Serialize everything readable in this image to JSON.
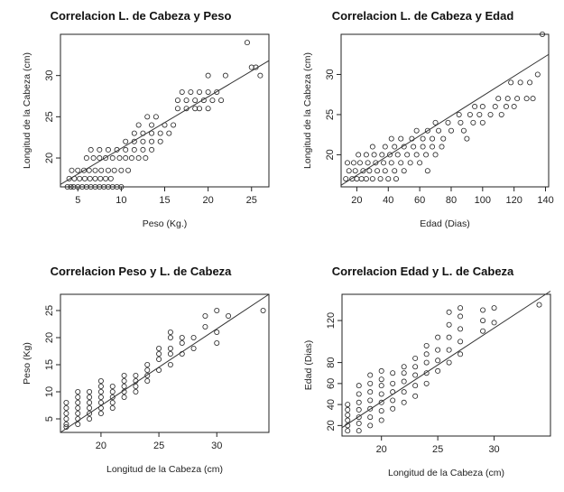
{
  "chart_data": [
    {
      "type": "scatter",
      "title": "Correlacion L. de Cabeza y Peso",
      "xlabel": "Peso (Kg.)",
      "ylabel": "Longitud de la Cabeza (cm)",
      "xlim": [
        3,
        27
      ],
      "ylim": [
        16.5,
        35
      ],
      "xticks": [
        5,
        10,
        15,
        20,
        25
      ],
      "yticks": [
        20,
        25,
        30
      ],
      "grid": false,
      "trendline": {
        "x": [
          3,
          27
        ],
        "y": [
          16.8,
          31.8
        ]
      },
      "x": [
        3.8,
        4.2,
        4.5,
        5.0,
        5.5,
        6.0,
        6.5,
        7.0,
        7.5,
        8.0,
        8.5,
        9.0,
        9.5,
        10.0,
        4.0,
        4.6,
        5.2,
        5.8,
        6.4,
        7.0,
        7.6,
        8.2,
        8.8,
        4.3,
        5.0,
        5.7,
        6.3,
        7.0,
        7.7,
        8.5,
        9.2,
        10.0,
        10.8,
        6.0,
        6.8,
        7.5,
        8.2,
        9.0,
        9.8,
        10.5,
        11.2,
        12.0,
        12.8,
        6.5,
        7.5,
        8.5,
        9.5,
        10.5,
        11.5,
        12.5,
        13.5,
        10.5,
        11.5,
        12.5,
        13.5,
        14.5,
        11.5,
        12.5,
        13.5,
        14.5,
        15.5,
        12.0,
        13.5,
        15.0,
        16.0,
        13.0,
        14.0,
        16.5,
        17.5,
        18.5,
        19.0,
        20.0,
        16.5,
        17.5,
        18.5,
        19.5,
        20.5,
        17.0,
        18.0,
        19.0,
        20.0,
        21.0,
        21.5,
        20.0,
        22.0,
        25.0,
        24.5,
        25.5,
        26.0
      ],
      "y": [
        16.5,
        16.5,
        16.5,
        16.5,
        16.5,
        16.5,
        16.5,
        16.5,
        16.5,
        16.5,
        16.5,
        16.5,
        16.5,
        16.5,
        17.5,
        17.5,
        17.5,
        17.5,
        17.5,
        17.5,
        17.5,
        17.5,
        17.5,
        18.5,
        18.5,
        18.5,
        18.5,
        18.5,
        18.5,
        18.5,
        18.5,
        18.5,
        18.5,
        20,
        20,
        20,
        20,
        20,
        20,
        20,
        20,
        20,
        20,
        21,
        21,
        21,
        21,
        21,
        21,
        21,
        21,
        22,
        22,
        22,
        22,
        22,
        23,
        23,
        23,
        23,
        23,
        24,
        24,
        24,
        24,
        25,
        25,
        26,
        26,
        26,
        26,
        26,
        27,
        27,
        27,
        27,
        27,
        28,
        28,
        28,
        28,
        28,
        27,
        30,
        30,
        31,
        34,
        31,
        30
      ]
    },
    {
      "type": "scatter",
      "title": "Correlacion L. de Cabeza y Edad",
      "xlabel": "Edad (Dias)",
      "ylabel": "Longitud de la Cabeza (cm)",
      "xlim": [
        10,
        142
      ],
      "ylim": [
        16,
        35
      ],
      "xticks": [
        20,
        40,
        60,
        80,
        100,
        120,
        140
      ],
      "yticks": [
        20,
        25,
        30
      ],
      "grid": false,
      "trendline": {
        "x": [
          10,
          142
        ],
        "y": [
          16.2,
          32.5
        ]
      },
      "x": [
        13,
        17,
        20,
        23,
        26,
        30,
        35,
        40,
        45,
        15,
        19,
        24,
        28,
        33,
        38,
        44,
        50,
        14,
        18,
        22,
        27,
        32,
        37,
        42,
        48,
        54,
        60,
        21,
        26,
        31,
        36,
        41,
        46,
        52,
        58,
        64,
        70,
        38,
        44,
        50,
        56,
        62,
        68,
        74,
        42,
        48,
        55,
        62,
        68,
        75,
        58,
        65,
        72,
        80,
        88,
        70,
        78,
        86,
        94,
        100,
        85,
        92,
        98,
        105,
        112,
        95,
        100,
        108,
        115,
        120,
        110,
        116,
        122,
        128,
        132,
        118,
        124,
        130,
        135,
        30,
        65,
        90,
        138
      ],
      "y": [
        17,
        17,
        17,
        17,
        17,
        17,
        17,
        17,
        17,
        18,
        18,
        18,
        18,
        18,
        18,
        18,
        18,
        19,
        19,
        19,
        19,
        19,
        19,
        19,
        19,
        19,
        19,
        20,
        20,
        20,
        20,
        20,
        20,
        20,
        20,
        20,
        20,
        21,
        21,
        21,
        21,
        21,
        21,
        21,
        22,
        22,
        22,
        22,
        22,
        22,
        23,
        23,
        23,
        23,
        23,
        24,
        24,
        24,
        24,
        24,
        25,
        25,
        25,
        25,
        25,
        26,
        26,
        26,
        26,
        26,
        27,
        27,
        27,
        27,
        27,
        29,
        29,
        29,
        30,
        21,
        18,
        22,
        35
      ]
    },
    {
      "type": "scatter",
      "title": "Correlacion Peso y  L. de Cabeza",
      "xlabel": "Longitud de la Cabeza (cm)",
      "ylabel": "Peso (Kg)",
      "xlim": [
        16.5,
        34.5
      ],
      "ylim": [
        2.5,
        28
      ],
      "xticks": [
        20,
        25,
        30
      ],
      "yticks": [
        5,
        10,
        15,
        20,
        25
      ],
      "grid": false,
      "trendline": {
        "x": [
          16.5,
          34.5
        ],
        "y": [
          2.5,
          28
        ]
      },
      "x": [
        17,
        17,
        17,
        17,
        17,
        17,
        18,
        18,
        18,
        18,
        18,
        18,
        18,
        19,
        19,
        19,
        19,
        19,
        19,
        20,
        20,
        20,
        20,
        20,
        20,
        20,
        21,
        21,
        21,
        21,
        21,
        22,
        22,
        22,
        22,
        22,
        23,
        23,
        23,
        23,
        24,
        24,
        24,
        24,
        25,
        25,
        25,
        25,
        26,
        26,
        26,
        26,
        26,
        27,
        27,
        27,
        28,
        28,
        29,
        29,
        30,
        30,
        30,
        31,
        34
      ],
      "y": [
        4,
        5,
        6,
        7,
        8,
        3.5,
        4,
        5,
        6,
        7,
        8,
        9,
        10,
        5,
        6,
        7,
        8,
        9,
        10,
        6,
        7,
        8,
        9,
        10,
        11,
        12,
        7,
        8,
        9,
        10,
        11,
        9,
        10,
        11,
        12,
        13,
        10,
        11,
        12,
        13,
        12,
        13,
        14,
        15,
        14,
        16,
        17,
        18,
        15,
        17,
        18,
        20,
        21,
        17,
        19,
        20,
        18,
        20,
        22,
        24,
        19,
        21,
        25,
        24,
        25
      ]
    },
    {
      "type": "scatter",
      "title": "Correlacion Edad y  L. de Cabeza",
      "xlabel": "Longitud de la Cabeza (cm)",
      "ylabel": "Edad (Dias)",
      "xlim": [
        16.5,
        35
      ],
      "ylim": [
        10,
        145
      ],
      "xticks": [
        20,
        25,
        30
      ],
      "yticks": [
        20,
        40,
        60,
        80,
        120
      ],
      "grid": false,
      "trendline": {
        "x": [
          16.5,
          35
        ],
        "y": [
          18,
          148
        ]
      },
      "x": [
        17,
        17,
        17,
        17,
        17,
        17,
        18,
        18,
        18,
        18,
        18,
        18,
        18,
        19,
        19,
        19,
        19,
        19,
        19,
        19,
        20,
        20,
        20,
        20,
        20,
        20,
        20,
        21,
        21,
        21,
        21,
        21,
        22,
        22,
        22,
        22,
        22,
        23,
        23,
        23,
        23,
        23,
        24,
        24,
        24,
        24,
        24,
        25,
        25,
        25,
        25,
        26,
        26,
        26,
        26,
        26,
        27,
        27,
        27,
        27,
        27,
        29,
        29,
        29,
        30,
        30,
        34
      ],
      "y": [
        15,
        20,
        25,
        30,
        35,
        40,
        15,
        22,
        28,
        35,
        42,
        50,
        58,
        20,
        28,
        36,
        44,
        52,
        60,
        68,
        25,
        34,
        42,
        50,
        58,
        64,
        72,
        36,
        44,
        52,
        60,
        70,
        42,
        52,
        62,
        70,
        76,
        48,
        58,
        68,
        76,
        84,
        60,
        70,
        80,
        88,
        96,
        72,
        82,
        92,
        104,
        80,
        92,
        104,
        116,
        128,
        88,
        100,
        112,
        124,
        132,
        110,
        120,
        130,
        118,
        132,
        135
      ]
    }
  ]
}
